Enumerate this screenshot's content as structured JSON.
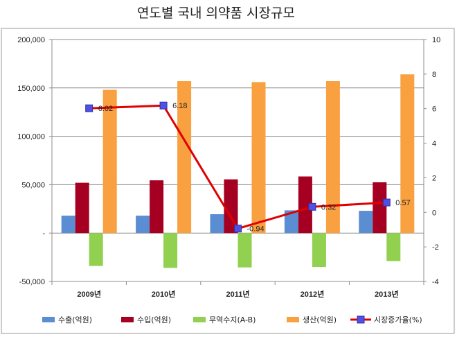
{
  "chart_data": {
    "type": "bar",
    "title": "연도별 국내 의약품 시장규모",
    "categories": [
      "2009년",
      "2010년",
      "2011년",
      "2012년",
      "2013년"
    ],
    "series": [
      {
        "name": "수출(억원)",
        "type": "bar",
        "axis": "left",
        "color": "#5b8dd2",
        "values": [
          18000,
          18000,
          19500,
          23500,
          23000
        ]
      },
      {
        "name": "수입(억원)",
        "type": "bar",
        "axis": "left",
        "color": "#a50021",
        "values": [
          52000,
          54500,
          55500,
          58500,
          52500
        ]
      },
      {
        "name": "무역수지(A-B)",
        "type": "bar",
        "axis": "left",
        "color": "#92d050",
        "values": [
          -34000,
          -36000,
          -35500,
          -35000,
          -29000
        ]
      },
      {
        "name": "생산(억원)",
        "type": "bar",
        "axis": "left",
        "color": "#f9a040",
        "values": [
          148000,
          157000,
          156000,
          157000,
          164000
        ]
      },
      {
        "name": "시장증가율(%)",
        "type": "line",
        "axis": "right",
        "color": "#e00000",
        "marker_color": "#5050e6",
        "values": [
          6.02,
          6.18,
          -0.94,
          0.32,
          0.57
        ],
        "labels": [
          "6.02",
          "6.18",
          "-0.94",
          "0.32",
          "0.57"
        ]
      }
    ],
    "y_left": {
      "min": -50000,
      "max": 200000,
      "ticks": [
        "-50,000",
        "-",
        "50,000",
        "100,000",
        "150,000",
        "200,000"
      ],
      "tick_values": [
        -50000,
        0,
        50000,
        100000,
        150000,
        200000
      ]
    },
    "y_right": {
      "min": -4,
      "max": 10,
      "ticks": [
        "-4",
        "-2",
        "0",
        "2",
        "4",
        "6",
        "8",
        "10"
      ],
      "tick_values": [
        -4,
        -2,
        0,
        2,
        4,
        6,
        8,
        10
      ]
    },
    "grid": true,
    "legend_position": "bottom"
  }
}
